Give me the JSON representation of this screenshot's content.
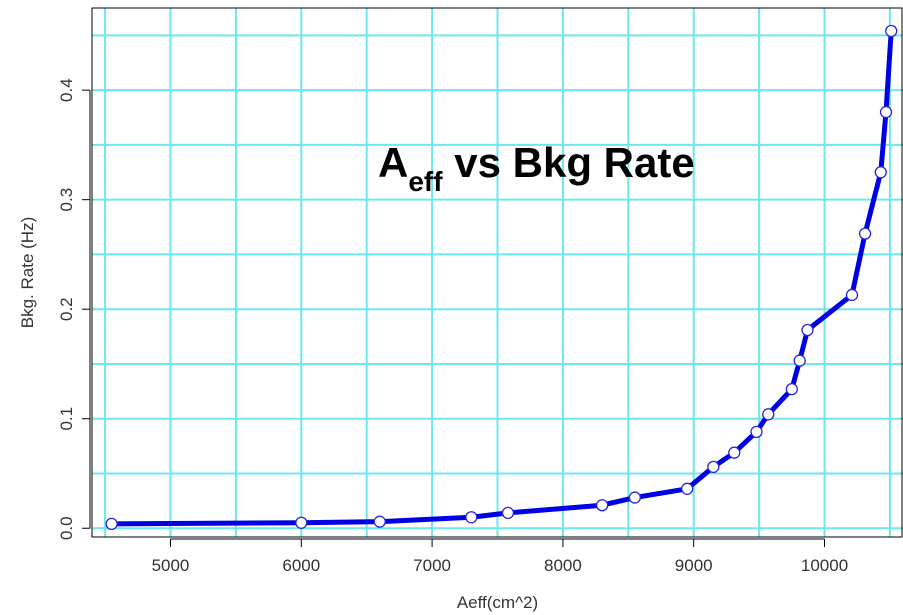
{
  "chart_data": {
    "type": "line",
    "title_main": "A",
    "title_sub": "eff",
    "title_rest": " vs Bkg Rate",
    "xlabel": "Aeff(cm^2)",
    "ylabel": "Bkg. Rate (Hz)",
    "xlim": [
      4400,
      10600
    ],
    "ylim": [
      -0.008,
      0.475
    ],
    "x_ticks": [
      5000,
      6000,
      7000,
      8000,
      9000,
      10000
    ],
    "y_ticks": [
      0.0,
      0.1,
      0.2,
      0.3,
      0.4
    ],
    "y_tick_labels": [
      "0.0",
      "0.1",
      "0.2",
      "0.3",
      "0.4"
    ],
    "grid": true,
    "grid_x": [
      4500,
      5000,
      5500,
      6000,
      6500,
      7000,
      7500,
      8000,
      8500,
      9000,
      9500,
      10000,
      10500
    ],
    "grid_y": [
      0.0,
      0.05,
      0.1,
      0.15,
      0.2,
      0.25,
      0.3,
      0.35,
      0.4,
      0.45
    ],
    "series": [
      {
        "x": [
          4550,
          6000,
          6600,
          7300,
          7580,
          8300,
          8550,
          8950,
          9150,
          9310,
          9480,
          9570,
          9750,
          9810,
          9870,
          10210,
          10310,
          10430,
          10470,
          10510
        ],
        "y": [
          0.004,
          0.005,
          0.006,
          0.01,
          0.014,
          0.021,
          0.028,
          0.036,
          0.056,
          0.069,
          0.088,
          0.104,
          0.127,
          0.153,
          0.181,
          0.213,
          0.269,
          0.325,
          0.38,
          0.454
        ]
      }
    ],
    "colors": {
      "line": "#0000e6",
      "marker": "#2626d9",
      "grid": "#6fe6ee",
      "axis": "#000000"
    }
  }
}
